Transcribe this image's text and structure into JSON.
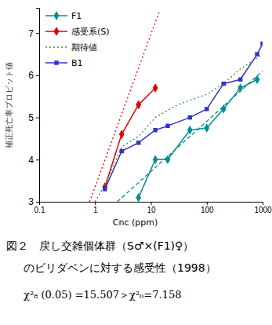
{
  "chart_data": {
    "type": "line",
    "title": [
      "図２　戻し交雑個体群（S♂×(F1)♀）",
      "のビリダベンに対する感受性（1998）"
    ],
    "subtitle": "χ²₈ (0.05) =15.507＞χ²₀=7.158",
    "x_label": "Cnc (ppm)",
    "y_label": "補正死亡率プロビット値",
    "log": "x",
    "grid": false,
    "legend": "upper left",
    "xlim": [
      0.1,
      1000
    ],
    "xticks": [
      0.1,
      1,
      10,
      100,
      1000
    ],
    "ylim": [
      3,
      7.6
    ],
    "yticks": [
      3,
      4,
      5,
      6,
      7
    ],
    "series": [
      {
        "name": "F1",
        "color": "#009090",
        "marker": "diamond",
        "line_style": "solid",
        "x": [
          6,
          12,
          20,
          50,
          100,
          200,
          400,
          800
        ],
        "values": [
          3.1,
          4.0,
          4.0,
          4.7,
          4.75,
          5.2,
          5.7,
          5.9
        ]
      },
      {
        "name": "感受系(S)",
        "color": "#e00000",
        "marker": "diamond",
        "line_style": "solid",
        "x": [
          1.5,
          3,
          6,
          12
        ],
        "values": [
          3.35,
          4.6,
          5.3,
          5.7
        ]
      },
      {
        "name": "期待値",
        "color": "#339933",
        "marker": "none",
        "line_style": "dotted",
        "x": [
          1,
          1.5,
          3,
          6,
          12,
          30,
          100,
          200,
          400,
          1000
        ],
        "values": [
          3.0,
          3.4,
          4.3,
          4.55,
          5.0,
          5.3,
          5.55,
          5.8,
          6.15,
          6.5
        ]
      },
      {
        "name": "B1",
        "color": "#3333cc",
        "marker": "square",
        "line_style": "solid",
        "x": [
          1.5,
          3,
          6,
          12,
          20,
          50,
          100,
          200,
          400,
          800,
          1000
        ],
        "values": [
          3.3,
          4.2,
          4.4,
          4.7,
          4.8,
          5.0,
          5.2,
          5.8,
          5.9,
          6.5,
          6.75
        ]
      },
      {
        "color": "#ff0000",
        "marker": "none",
        "line_style": "dotted",
        "x": [
          0.8,
          14
        ],
        "values": [
          3.0,
          7.5
        ]
      },
      {
        "color": "#009090",
        "marker": "none",
        "line_style": "dashed",
        "x": [
          2.5,
          1000
        ],
        "values": [
          3.0,
          6.1
        ]
      }
    ]
  }
}
